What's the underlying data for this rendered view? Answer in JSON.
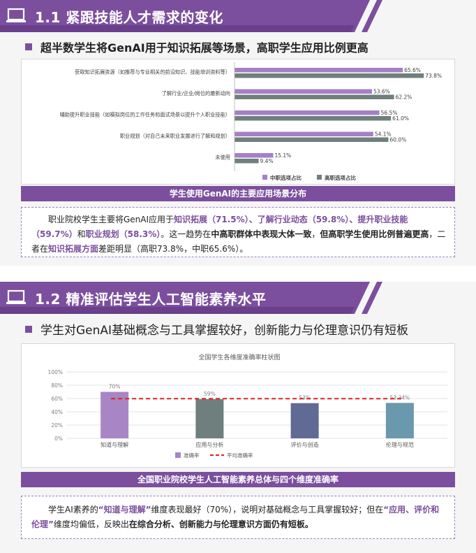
{
  "section1": {
    "title": "1.1 紧跟技能人才需求的变化",
    "subheading": "超半数学生将GenAI用于知识拓展等场景，高职学生应用比例更高",
    "caption": "学生使用GenAI的主要应用场景分布",
    "note": {
      "p1": "职业院校学生主要将GenAI应用于",
      "h1": "知识拓展（71.5%）",
      "p2": "、",
      "h2": "了解行业动态（59.8%）",
      "p3": "、",
      "h3": "提升职业技能（59.7%）",
      "p4": "和",
      "h4": "职业规划（58.3%）",
      "p5": "。这一趋势在",
      "b1": "中高职群体中表现大体一致",
      "p6": "，",
      "b2": "但高职学生使用比例普遍更高",
      "p7": "，二者在",
      "h5": "知识拓展方面",
      "p8": "差距明显（高职73.8%，中职65.6%）。"
    }
  },
  "section2": {
    "title": "1.2 精准评估学生人工智能素养水平",
    "subheading": "学生对GenAI基础概念与工具掌握较好，创新能力与伦理意识仍有短板",
    "caption": "全国职业院校学生人工智能素养总体与四个维度准确率",
    "note": {
      "p1": "学生AI素养的",
      "h1": "“知道与理解”",
      "p2": "维度表现最好（70%），说明对基础概念与工具掌握较好；但在",
      "h2": "“应用、评价和伦理”",
      "p3": "维度均偏低，反映出",
      "b1": "在综合分析、创新能力与伦理意识方面仍有短板。"
    }
  },
  "colors": {
    "accent_purple": "#7b4f9d",
    "series_light_purple": "#a57fc7",
    "series_gray": "#6f7f7d",
    "avg_line_red": "#e02020"
  },
  "icons": {
    "banner": "laptop-icon"
  },
  "chart_data": [
    {
      "type": "bar",
      "orientation": "horizontal",
      "categories": [
        "获取知识拓展资源（如推荐与专业相关的前沿知识、技能培训资料等）",
        "了解行业/企业/岗位的最新动向",
        "辅助提升职业技能（如模拟岗位的工作任务和面试场景以提升个人职业技能）",
        "职业规划（对自己未来职业发展进行了解和规划）",
        "未使用"
      ],
      "series": [
        {
          "name": "中职选项占比",
          "values": [
            65.6,
            53.6,
            56.5,
            54.1,
            15.1
          ],
          "labels": [
            "65.6%",
            "53.6%",
            "56.5%",
            "54.1%",
            "15.1%"
          ],
          "color": "#a57fc7"
        },
        {
          "name": "高职选项占比",
          "values": [
            73.8,
            62.2,
            61.0,
            60.0,
            9.4
          ],
          "labels": [
            "73.8%",
            "62.2%",
            "61.0%",
            "60.0%",
            "9.4%"
          ],
          "color": "#6f7f7d"
        }
      ],
      "xlim": [
        0,
        80
      ],
      "legend": "bottom"
    },
    {
      "type": "bar",
      "title": "全国学生各维度准确率柱状图",
      "categories": [
        "知道与理解",
        "应用与分析",
        "评价与创造",
        "伦理与规范"
      ],
      "values": [
        70,
        59,
        53,
        53.34
      ],
      "labels": [
        "70%",
        "59%",
        "53%",
        "53.34%"
      ],
      "bar_colors": [
        "#a886c6",
        "#6f7f7d",
        "#5f6a95",
        "#6a98ad"
      ],
      "ylim": [
        0,
        100
      ],
      "y_ticks": [
        "0%",
        "20%",
        "40%",
        "60%",
        "80%",
        "100%"
      ],
      "average": 59.8,
      "legend": [
        "准确率",
        "平均准确率"
      ],
      "legend_position": "bottom",
      "grid": true
    }
  ]
}
